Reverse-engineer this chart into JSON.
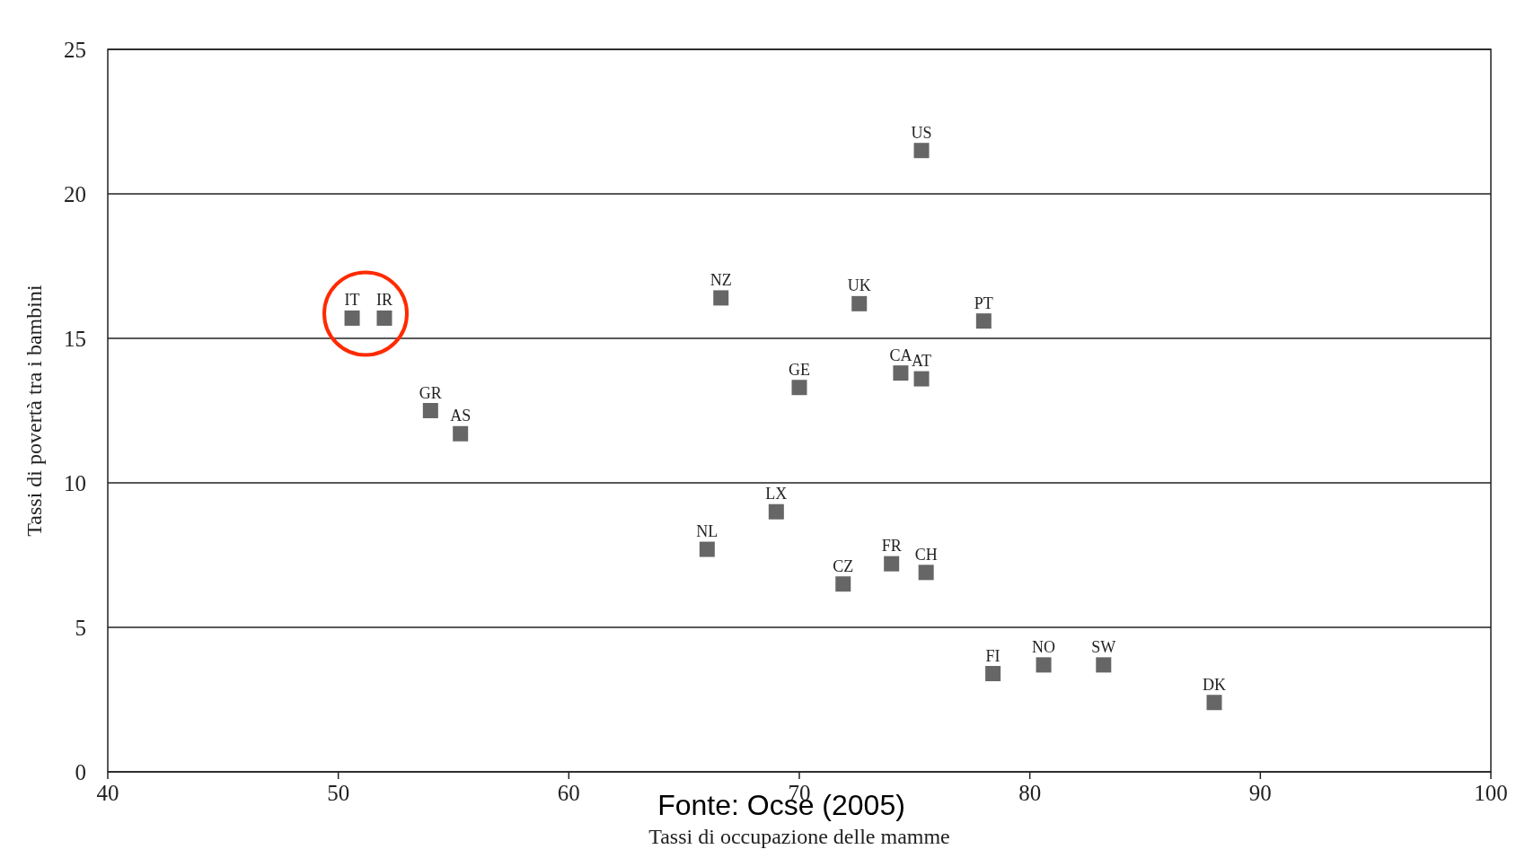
{
  "chart_data": {
    "type": "scatter",
    "xlabel": "Tassi di occupazione delle mamme",
    "ylabel": "Tassi di povertà tra i bambini",
    "x": [
      50.6,
      52.0,
      54.0,
      55.3,
      66.6,
      66.0,
      69.0,
      70.0,
      71.9,
      72.6,
      74.0,
      74.4,
      75.3,
      75.3,
      75.5,
      78.0,
      78.4,
      80.6,
      83.2,
      88.0
    ],
    "series": [
      {
        "color": "#666666",
        "values": [
          15.7,
          15.7,
          12.5,
          11.7,
          16.4,
          7.7,
          9.0,
          13.3,
          6.5,
          16.2,
          7.2,
          13.8,
          21.5,
          13.6,
          6.9,
          15.6,
          3.4,
          3.7,
          3.7,
          2.4
        ]
      }
    ],
    "xlim": [
      40,
      100
    ],
    "xticks": [
      40,
      50,
      60,
      70,
      80,
      90,
      100
    ],
    "ylim": [
      0,
      25
    ],
    "yticks": [
      0,
      5,
      10,
      15,
      20,
      25
    ],
    "grid": "y",
    "marker": "square",
    "annotations": [
      {
        "text": "IT",
        "x": 50.6,
        "y": 15.7
      },
      {
        "text": "IR",
        "x": 52.0,
        "y": 15.7
      },
      {
        "text": "GR",
        "x": 54.0,
        "y": 12.5
      },
      {
        "text": "AS",
        "x": 55.3,
        "y": 11.7
      },
      {
        "text": "NZ",
        "x": 66.6,
        "y": 16.4
      },
      {
        "text": "NL",
        "x": 66.0,
        "y": 7.7
      },
      {
        "text": "LX",
        "x": 69.0,
        "y": 9.0
      },
      {
        "text": "GE",
        "x": 70.0,
        "y": 13.3
      },
      {
        "text": "CZ",
        "x": 71.9,
        "y": 6.5
      },
      {
        "text": "UK",
        "x": 72.6,
        "y": 16.2
      },
      {
        "text": "FR",
        "x": 74.0,
        "y": 7.2
      },
      {
        "text": "CA",
        "x": 74.4,
        "y": 13.8
      },
      {
        "text": "US",
        "x": 75.3,
        "y": 21.5
      },
      {
        "text": "AT",
        "x": 75.3,
        "y": 13.6
      },
      {
        "text": "CH",
        "x": 75.5,
        "y": 6.9
      },
      {
        "text": "PT",
        "x": 78.0,
        "y": 15.6
      },
      {
        "text": "FI",
        "x": 78.4,
        "y": 3.4
      },
      {
        "text": "NO",
        "x": 80.6,
        "y": 3.7
      },
      {
        "text": "SW",
        "x": 83.2,
        "y": 3.7
      },
      {
        "text": "DK",
        "x": 88.0,
        "y": 2.4
      },
      "Fonte: Ocse (2005)"
    ]
  }
}
